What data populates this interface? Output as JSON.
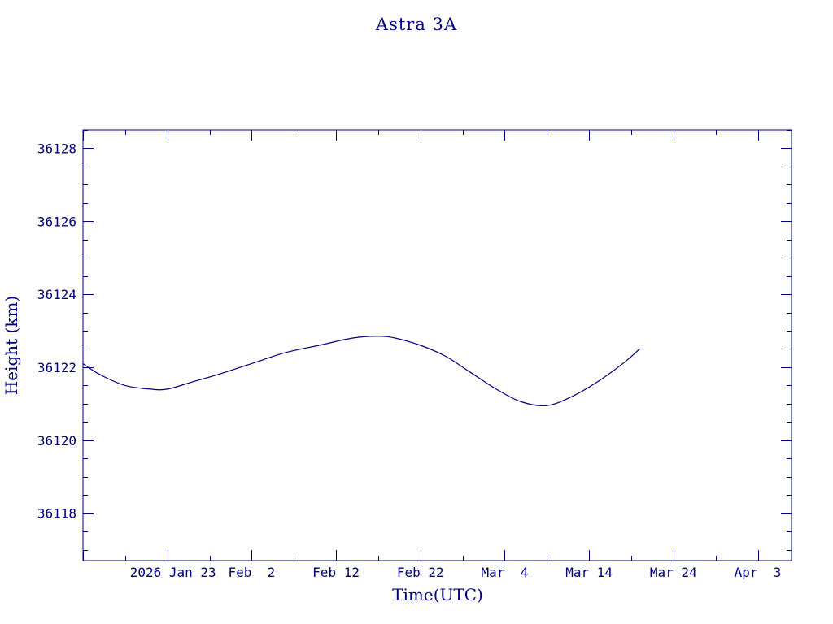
{
  "chart_data": {
    "type": "line",
    "title": "Astra 3A",
    "xlabel": "Time(UTC)",
    "ylabel": "Height (km)",
    "x_start": "2026-01-13",
    "x_end": "2026-04-07",
    "ylim": [
      36116.7,
      36128.5
    ],
    "yticks": [
      36118,
      36120,
      36122,
      36124,
      36126,
      36128
    ],
    "xtick_dates": [
      "2026-01-23",
      "2026-02-02",
      "2026-02-12",
      "2026-02-22",
      "2026-03-04",
      "2026-03-14",
      "2026-03-24",
      "2026-04-03"
    ],
    "xtick_labels": [
      "2026 Jan 23",
      "Feb  2",
      "Feb 12",
      "Feb 22",
      "Mar  4",
      "Mar 14",
      "Mar 24",
      "Apr  3"
    ],
    "x": [
      "2026-01-13",
      "2026-01-15",
      "2026-01-18",
      "2026-01-21",
      "2026-01-23",
      "2026-01-26",
      "2026-01-29",
      "2026-02-02",
      "2026-02-06",
      "2026-02-10",
      "2026-02-14",
      "2026-02-17",
      "2026-02-19",
      "2026-02-22",
      "2026-02-25",
      "2026-02-28",
      "2026-03-03",
      "2026-03-06",
      "2026-03-09",
      "2026-03-12",
      "2026-03-15",
      "2026-03-18",
      "2026-03-20"
    ],
    "y": [
      36122.1,
      36121.8,
      36121.5,
      36121.4,
      36121.4,
      36121.6,
      36121.8,
      36122.1,
      36122.4,
      36122.6,
      36122.8,
      36122.85,
      36122.8,
      36122.6,
      36122.3,
      36121.85,
      36121.4,
      36121.05,
      36120.95,
      36121.2,
      36121.6,
      36122.1,
      36122.5
    ],
    "color": "#00007f"
  }
}
